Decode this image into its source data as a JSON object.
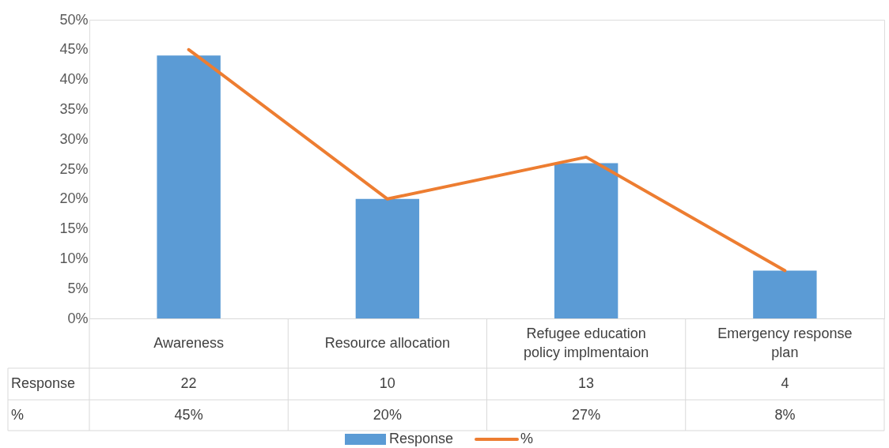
{
  "chart_data": {
    "type": "bar",
    "categories": [
      "Awareness",
      "Resource allocation",
      "Refugee education policy implmentaion",
      "Emergency response plan"
    ],
    "series": [
      {
        "name": "Response",
        "type": "bar",
        "color": "#5b9bd5",
        "axis": "y2",
        "values": [
          22,
          10,
          13,
          4
        ],
        "value_labels": [
          "22",
          "10",
          "13",
          "4"
        ]
      },
      {
        "name": "%",
        "type": "line",
        "color": "#ed7d31",
        "values": [
          45,
          20,
          27,
          8
        ],
        "value_labels": [
          "45%",
          "20%",
          "27%",
          "8%"
        ]
      }
    ],
    "ylim": [
      0,
      50
    ],
    "yticks": [
      {
        "value": 0,
        "label": "0%"
      },
      {
        "value": 5,
        "label": "5%"
      },
      {
        "value": 10,
        "label": "10%"
      },
      {
        "value": 15,
        "label": "15%"
      },
      {
        "value": 20,
        "label": "20%"
      },
      {
        "value": 25,
        "label": "25%"
      },
      {
        "value": 30,
        "label": "30%"
      },
      {
        "value": 35,
        "label": "35%"
      },
      {
        "value": 40,
        "label": "40%"
      },
      {
        "value": 45,
        "label": "45%"
      },
      {
        "value": 50,
        "label": "50%"
      }
    ],
    "y2lim": [
      0,
      25
    ],
    "grid": false,
    "legend": "bottom"
  }
}
